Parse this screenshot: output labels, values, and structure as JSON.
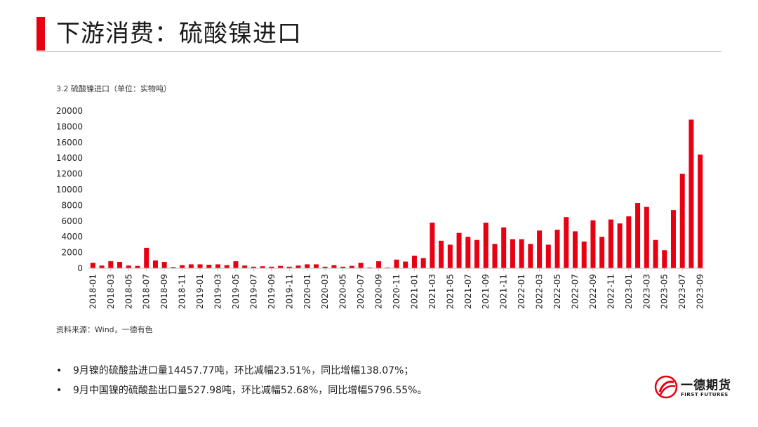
{
  "header": {
    "title": "下游消费：硫酸镍进口"
  },
  "chart_title": "3.2 硫酸镍进口（单位：实物吨）",
  "source": "资料来源：Wind，一德有色",
  "bullets": [
    "9月镍的硫酸盐进口量14457.77吨，环比减幅23.51%，同比增幅138.07%；",
    "9月中国镍的硫酸盐出口量527.98吨，环比减幅52.68%，同比增幅5796.55%。"
  ],
  "bullet_glyph": "•",
  "logo": {
    "name_cn": "一德期货",
    "name_en": "FIRST FUTURES"
  },
  "colors": {
    "accent": "#e60012",
    "bar": "#e60012"
  },
  "chart_data": {
    "type": "bar",
    "title": "3.2 硫酸镍进口（单位：实物吨）",
    "xlabel": "",
    "ylabel": "",
    "ylim": [
      0,
      20000
    ],
    "yticks": [
      0,
      2000,
      4000,
      6000,
      8000,
      10000,
      12000,
      14000,
      16000,
      18000,
      20000
    ],
    "grid": false,
    "legend": "none",
    "categories": [
      "2018-01",
      "2018-02",
      "2018-03",
      "2018-04",
      "2018-05",
      "2018-06",
      "2018-07",
      "2018-08",
      "2018-09",
      "2018-10",
      "2018-11",
      "2018-12",
      "2019-01",
      "2019-02",
      "2019-03",
      "2019-04",
      "2019-05",
      "2019-06",
      "2019-07",
      "2019-08",
      "2019-09",
      "2019-10",
      "2019-11",
      "2019-12",
      "2020-01",
      "2020-02",
      "2020-03",
      "2020-04",
      "2020-05",
      "2020-06",
      "2020-07",
      "2020-08",
      "2020-09",
      "2020-10",
      "2020-11",
      "2020-12",
      "2021-01",
      "2021-02",
      "2021-03",
      "2021-04",
      "2021-05",
      "2021-06",
      "2021-07",
      "2021-08",
      "2021-09",
      "2021-10",
      "2021-11",
      "2021-12",
      "2022-01",
      "2022-02",
      "2022-03",
      "2022-04",
      "2022-05",
      "2022-06",
      "2022-07",
      "2022-08",
      "2022-09",
      "2022-10",
      "2022-11",
      "2022-12",
      "2023-01",
      "2023-02",
      "2023-03",
      "2023-04",
      "2023-05",
      "2023-06",
      "2023-07",
      "2023-08",
      "2023-09"
    ],
    "tick_labels": [
      "2018-01",
      "2018-03",
      "2018-05",
      "2018-07",
      "2018-09",
      "2018-11",
      "2019-01",
      "2019-03",
      "2019-05",
      "2019-07",
      "2019-09",
      "2019-11",
      "2020-01",
      "2020-03",
      "2020-05",
      "2020-07",
      "2020-09",
      "2020-11",
      "2021-01",
      "2021-03",
      "2021-05",
      "2021-07",
      "2021-09",
      "2021-11",
      "2022-01",
      "2022-03",
      "2022-05",
      "2022-07",
      "2022-09",
      "2022-11",
      "2023-01",
      "2023-03",
      "2023-05",
      "2023-07",
      "2023-09"
    ],
    "values": [
      700,
      350,
      900,
      800,
      350,
      300,
      2600,
      1000,
      800,
      150,
      400,
      500,
      500,
      450,
      500,
      400,
      900,
      350,
      200,
      250,
      200,
      300,
      200,
      350,
      500,
      500,
      200,
      400,
      200,
      300,
      700,
      100,
      900,
      100,
      1100,
      850,
      1600,
      1300,
      5800,
      3500,
      3000,
      4500,
      4000,
      3600,
      5800,
      3100,
      5200,
      3700,
      3700,
      3100,
      4800,
      3000,
      4900,
      6500,
      4700,
      3400,
      6100,
      4000,
      6200,
      5700,
      6600,
      8300,
      7800,
      3600,
      2300,
      7400,
      12000,
      18900,
      14458
    ]
  }
}
